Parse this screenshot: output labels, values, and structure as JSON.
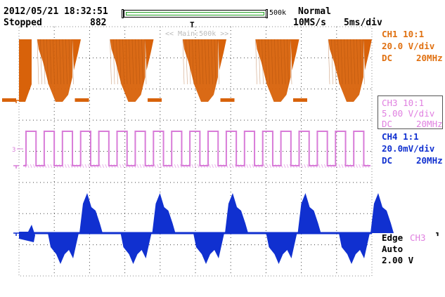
{
  "header": {
    "datetime": "2012/05/21 18:32:51",
    "status": "Stopped",
    "count": "882",
    "memory_length": "500k",
    "trigger_mode": "Normal",
    "sample_rate": "10MS/s",
    "timebase": "5ms/div",
    "zoom_label": "<< Main:500k >>"
  },
  "channels": {
    "ch1": {
      "name": "CH1 10:1",
      "scale": "20.0 V/div",
      "coupling": "DC",
      "bandwidth": "20MHz",
      "color": "#d8620a"
    },
    "ch3": {
      "name": "CH3 10:1",
      "scale": "5.00 V/div",
      "coupling": "DC",
      "bandwidth": "20MHz",
      "color": "#d87cd8"
    },
    "ch4": {
      "name": "CH4 1:1",
      "scale": "20.0mV/div",
      "coupling": "DC",
      "bandwidth": "20MHz",
      "color": "#1030d0"
    }
  },
  "trigger": {
    "type": "Edge",
    "source": "CH3",
    "mode": "Auto",
    "level": "2.00 V"
  },
  "markers": {
    "trigger_pos": "T",
    "ch3_marker": "3"
  }
}
